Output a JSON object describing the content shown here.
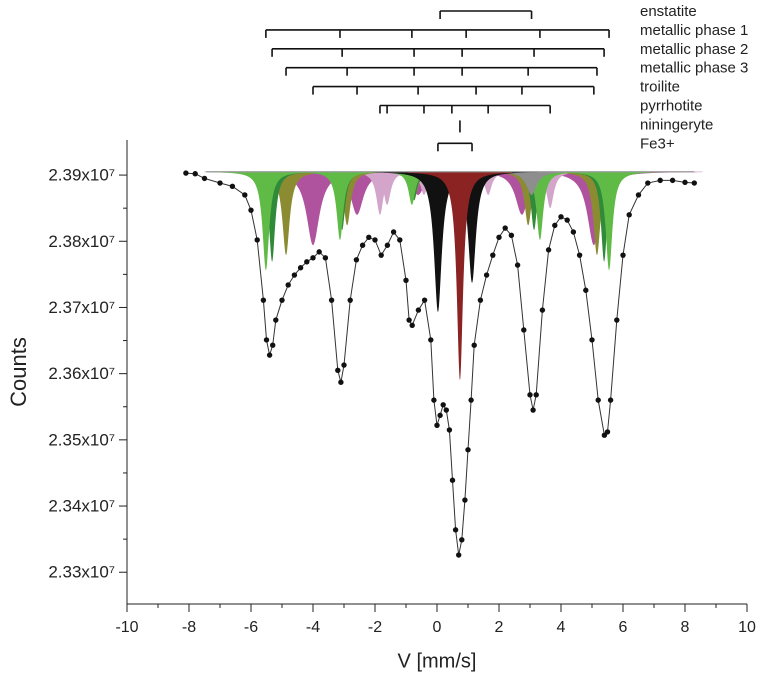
{
  "chart_data": {
    "type": "scatter",
    "x_label": "V [mm/s]",
    "y_label": "Counts",
    "xlim": [
      -10,
      10
    ],
    "xticks": [
      -10,
      -8,
      -6,
      -4,
      -2,
      0,
      2,
      4,
      6,
      8,
      10
    ],
    "xminor_ticks": [
      -9,
      -7,
      -5,
      -3,
      -1,
      1,
      3,
      5,
      7,
      9
    ],
    "ylim": [
      23252000,
      23953000
    ],
    "yticks": [
      {
        "value": 23300000,
        "label": "2.33x10⁷"
      },
      {
        "value": 23400000,
        "label": "2.34x10⁷"
      },
      {
        "value": 23500000,
        "label": "2.35x10⁷"
      },
      {
        "value": 23600000,
        "label": "2.36x10⁷"
      },
      {
        "value": 23700000,
        "label": "2.37x10⁷"
      },
      {
        "value": 23800000,
        "label": "2.38x10⁷"
      },
      {
        "value": 23900000,
        "label": "2.39x10⁷"
      }
    ],
    "yminor_ticks": [
      23350000,
      23450000,
      23550000,
      23650000,
      23750000,
      23850000
    ],
    "baseline": 23905000,
    "series": [
      {
        "color": "#111111",
        "x": [
          -8.1,
          -7.8,
          -7.5,
          -7.0,
          -6.6,
          -6.2,
          -6.0,
          -5.8,
          -5.6,
          -5.5,
          -5.4,
          -5.3,
          -5.2,
          -5.0,
          -4.8,
          -4.6,
          -4.4,
          -4.2,
          -4.0,
          -3.8,
          -3.6,
          -3.4,
          -3.2,
          -3.1,
          -3.0,
          -2.8,
          -2.6,
          -2.4,
          -2.2,
          -2.0,
          -1.8,
          -1.6,
          -1.4,
          -1.2,
          -1.0,
          -0.9,
          -0.8,
          -0.6,
          -0.4,
          -0.2,
          -0.1,
          0.0,
          0.1,
          0.2,
          0.3,
          0.4,
          0.5,
          0.6,
          0.7,
          0.8,
          0.9,
          1.0,
          1.1,
          1.2,
          1.4,
          1.6,
          1.8,
          2.0,
          2.2,
          2.4,
          2.6,
          2.8,
          3.0,
          3.1,
          3.2,
          3.4,
          3.6,
          3.8,
          4.0,
          4.2,
          4.4,
          4.6,
          4.8,
          5.0,
          5.2,
          5.4,
          5.5,
          5.6,
          5.8,
          6.0,
          6.2,
          6.5,
          6.8,
          7.2,
          7.6,
          8.0,
          8.3
        ],
        "values": [
          23903000,
          23902000,
          23895000,
          23888000,
          23883000,
          23870000,
          23847000,
          23802000,
          23711000,
          23651000,
          23628000,
          23643000,
          23681000,
          23711000,
          23734000,
          23749000,
          23760000,
          23769000,
          23775000,
          23784000,
          23775000,
          23711000,
          23605000,
          23587000,
          23613000,
          23711000,
          23772000,
          23794000,
          23806000,
          23802000,
          23779000,
          23794000,
          23814000,
          23802000,
          23741000,
          23681000,
          23673000,
          23696000,
          23711000,
          23651000,
          23560000,
          23522000,
          23537000,
          23553000,
          23545000,
          23515000,
          23439000,
          23364000,
          23326000,
          23349000,
          23409000,
          23485000,
          23560000,
          23643000,
          23711000,
          23749000,
          23779000,
          23806000,
          23820000,
          23809000,
          23764000,
          23666000,
          23568000,
          23545000,
          23568000,
          23696000,
          23787000,
          23824000,
          23837000,
          23832000,
          23814000,
          23779000,
          23726000,
          23651000,
          23560000,
          23507000,
          23512000,
          23560000,
          23681000,
          23779000,
          23840000,
          23870000,
          23888000,
          23892000,
          23892000,
          23889000,
          23888000
        ]
      }
    ],
    "phases": [
      {
        "name": "enstatite",
        "color": "#8e8e8e",
        "lines": [
          0.1,
          3.05
        ],
        "dips": [
          23870000,
          23870000
        ],
        "width": 0.2
      },
      {
        "name": "metallic phase 1",
        "color": "#5fbb46",
        "lines": [
          -5.52,
          -3.13,
          -0.81,
          0.94,
          3.32,
          5.55
        ],
        "dips": [
          23756000,
          23802000,
          23855000,
          23855000,
          23802000,
          23756000
        ],
        "width": 0.13
      },
      {
        "name": "metallic phase 2",
        "color": "#2f8a3a",
        "lines": [
          -5.32,
          -3.06,
          -0.74,
          0.81,
          3.13,
          5.39
        ],
        "dips": [
          23769000,
          23817000,
          23862000,
          23862000,
          23817000,
          23769000
        ],
        "width": 0.12
      },
      {
        "name": "metallic phase 3",
        "color": "#8b8b32",
        "lines": [
          -4.87,
          -2.9,
          -0.74,
          0.81,
          2.94,
          5.16
        ],
        "dips": [
          23779000,
          23824000,
          23862000,
          23862000,
          23824000,
          23779000
        ],
        "width": 0.14
      },
      {
        "name": "troilite",
        "color": "#b0539f",
        "lines": [
          -4.0,
          -2.58,
          -0.61,
          1.26,
          2.74,
          5.06
        ],
        "dips": [
          23794000,
          23840000,
          23870000,
          23870000,
          23840000,
          23794000
        ],
        "width": 0.25
      },
      {
        "name": "pyrrhotite",
        "color": "#d4a5cb",
        "lines": [
          -1.84,
          -1.61,
          -0.42,
          0.48,
          1.65,
          3.65
        ],
        "dips": [
          23840000,
          23855000,
          23870000,
          23877000,
          23870000,
          23850000
        ],
        "width": 0.14
      },
      {
        "name": "niningeryte",
        "color": "#8b2323",
        "lines": [
          0.74
        ],
        "dips": [
          23590000
        ],
        "width": 0.12
      },
      {
        "name": "Fe3+",
        "color": "#111111",
        "lines": [
          0.03,
          1.13
        ],
        "dips": [
          23693000,
          23737000
        ],
        "width": 0.15
      }
    ]
  }
}
